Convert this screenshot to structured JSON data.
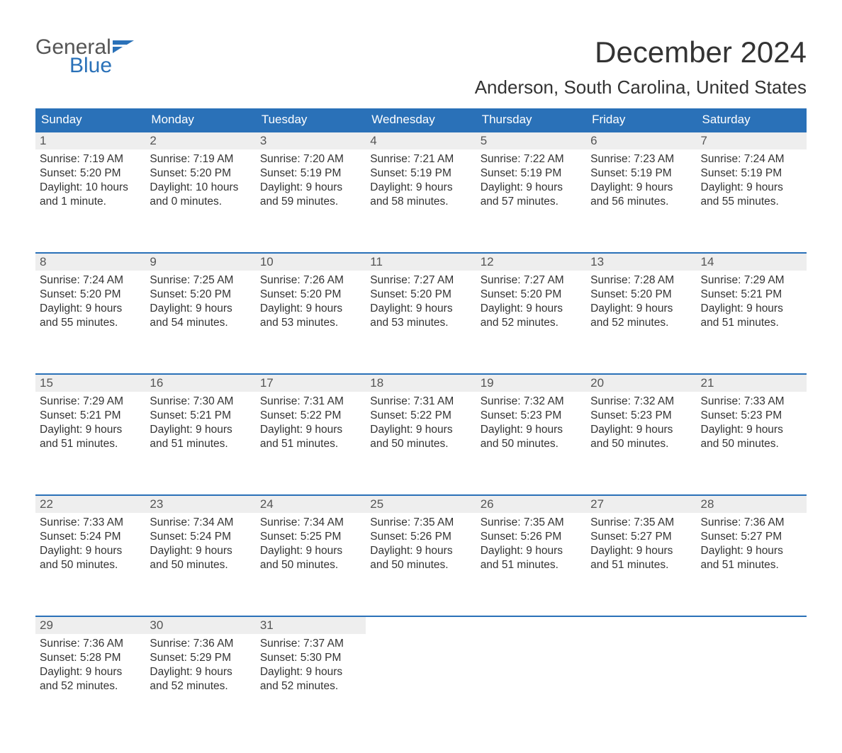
{
  "colors": {
    "header_bg": "#2a71b8",
    "header_text": "#ffffff",
    "daynum_bg": "#eeeeee",
    "row_border": "#2a71b8",
    "text": "#333333",
    "logo_gray": "#555555",
    "logo_blue": "#2a71b8",
    "page_bg": "#ffffff"
  },
  "logo": {
    "word1": "General",
    "word2": "Blue"
  },
  "title": "December 2024",
  "location": "Anderson, South Carolina, United States",
  "day_headers": [
    "Sunday",
    "Monday",
    "Tuesday",
    "Wednesday",
    "Thursday",
    "Friday",
    "Saturday"
  ],
  "weeks": [
    [
      {
        "n": "1",
        "sr": "Sunrise: 7:19 AM",
        "ss": "Sunset: 5:20 PM",
        "d1": "Daylight: 10 hours",
        "d2": "and 1 minute."
      },
      {
        "n": "2",
        "sr": "Sunrise: 7:19 AM",
        "ss": "Sunset: 5:20 PM",
        "d1": "Daylight: 10 hours",
        "d2": "and 0 minutes."
      },
      {
        "n": "3",
        "sr": "Sunrise: 7:20 AM",
        "ss": "Sunset: 5:19 PM",
        "d1": "Daylight: 9 hours",
        "d2": "and 59 minutes."
      },
      {
        "n": "4",
        "sr": "Sunrise: 7:21 AM",
        "ss": "Sunset: 5:19 PM",
        "d1": "Daylight: 9 hours",
        "d2": "and 58 minutes."
      },
      {
        "n": "5",
        "sr": "Sunrise: 7:22 AM",
        "ss": "Sunset: 5:19 PM",
        "d1": "Daylight: 9 hours",
        "d2": "and 57 minutes."
      },
      {
        "n": "6",
        "sr": "Sunrise: 7:23 AM",
        "ss": "Sunset: 5:19 PM",
        "d1": "Daylight: 9 hours",
        "d2": "and 56 minutes."
      },
      {
        "n": "7",
        "sr": "Sunrise: 7:24 AM",
        "ss": "Sunset: 5:19 PM",
        "d1": "Daylight: 9 hours",
        "d2": "and 55 minutes."
      }
    ],
    [
      {
        "n": "8",
        "sr": "Sunrise: 7:24 AM",
        "ss": "Sunset: 5:20 PM",
        "d1": "Daylight: 9 hours",
        "d2": "and 55 minutes."
      },
      {
        "n": "9",
        "sr": "Sunrise: 7:25 AM",
        "ss": "Sunset: 5:20 PM",
        "d1": "Daylight: 9 hours",
        "d2": "and 54 minutes."
      },
      {
        "n": "10",
        "sr": "Sunrise: 7:26 AM",
        "ss": "Sunset: 5:20 PM",
        "d1": "Daylight: 9 hours",
        "d2": "and 53 minutes."
      },
      {
        "n": "11",
        "sr": "Sunrise: 7:27 AM",
        "ss": "Sunset: 5:20 PM",
        "d1": "Daylight: 9 hours",
        "d2": "and 53 minutes."
      },
      {
        "n": "12",
        "sr": "Sunrise: 7:27 AM",
        "ss": "Sunset: 5:20 PM",
        "d1": "Daylight: 9 hours",
        "d2": "and 52 minutes."
      },
      {
        "n": "13",
        "sr": "Sunrise: 7:28 AM",
        "ss": "Sunset: 5:20 PM",
        "d1": "Daylight: 9 hours",
        "d2": "and 52 minutes."
      },
      {
        "n": "14",
        "sr": "Sunrise: 7:29 AM",
        "ss": "Sunset: 5:21 PM",
        "d1": "Daylight: 9 hours",
        "d2": "and 51 minutes."
      }
    ],
    [
      {
        "n": "15",
        "sr": "Sunrise: 7:29 AM",
        "ss": "Sunset: 5:21 PM",
        "d1": "Daylight: 9 hours",
        "d2": "and 51 minutes."
      },
      {
        "n": "16",
        "sr": "Sunrise: 7:30 AM",
        "ss": "Sunset: 5:21 PM",
        "d1": "Daylight: 9 hours",
        "d2": "and 51 minutes."
      },
      {
        "n": "17",
        "sr": "Sunrise: 7:31 AM",
        "ss": "Sunset: 5:22 PM",
        "d1": "Daylight: 9 hours",
        "d2": "and 51 minutes."
      },
      {
        "n": "18",
        "sr": "Sunrise: 7:31 AM",
        "ss": "Sunset: 5:22 PM",
        "d1": "Daylight: 9 hours",
        "d2": "and 50 minutes."
      },
      {
        "n": "19",
        "sr": "Sunrise: 7:32 AM",
        "ss": "Sunset: 5:23 PM",
        "d1": "Daylight: 9 hours",
        "d2": "and 50 minutes."
      },
      {
        "n": "20",
        "sr": "Sunrise: 7:32 AM",
        "ss": "Sunset: 5:23 PM",
        "d1": "Daylight: 9 hours",
        "d2": "and 50 minutes."
      },
      {
        "n": "21",
        "sr": "Sunrise: 7:33 AM",
        "ss": "Sunset: 5:23 PM",
        "d1": "Daylight: 9 hours",
        "d2": "and 50 minutes."
      }
    ],
    [
      {
        "n": "22",
        "sr": "Sunrise: 7:33 AM",
        "ss": "Sunset: 5:24 PM",
        "d1": "Daylight: 9 hours",
        "d2": "and 50 minutes."
      },
      {
        "n": "23",
        "sr": "Sunrise: 7:34 AM",
        "ss": "Sunset: 5:24 PM",
        "d1": "Daylight: 9 hours",
        "d2": "and 50 minutes."
      },
      {
        "n": "24",
        "sr": "Sunrise: 7:34 AM",
        "ss": "Sunset: 5:25 PM",
        "d1": "Daylight: 9 hours",
        "d2": "and 50 minutes."
      },
      {
        "n": "25",
        "sr": "Sunrise: 7:35 AM",
        "ss": "Sunset: 5:26 PM",
        "d1": "Daylight: 9 hours",
        "d2": "and 50 minutes."
      },
      {
        "n": "26",
        "sr": "Sunrise: 7:35 AM",
        "ss": "Sunset: 5:26 PM",
        "d1": "Daylight: 9 hours",
        "d2": "and 51 minutes."
      },
      {
        "n": "27",
        "sr": "Sunrise: 7:35 AM",
        "ss": "Sunset: 5:27 PM",
        "d1": "Daylight: 9 hours",
        "d2": "and 51 minutes."
      },
      {
        "n": "28",
        "sr": "Sunrise: 7:36 AM",
        "ss": "Sunset: 5:27 PM",
        "d1": "Daylight: 9 hours",
        "d2": "and 51 minutes."
      }
    ],
    [
      {
        "n": "29",
        "sr": "Sunrise: 7:36 AM",
        "ss": "Sunset: 5:28 PM",
        "d1": "Daylight: 9 hours",
        "d2": "and 52 minutes."
      },
      {
        "n": "30",
        "sr": "Sunrise: 7:36 AM",
        "ss": "Sunset: 5:29 PM",
        "d1": "Daylight: 9 hours",
        "d2": "and 52 minutes."
      },
      {
        "n": "31",
        "sr": "Sunrise: 7:37 AM",
        "ss": "Sunset: 5:30 PM",
        "d1": "Daylight: 9 hours",
        "d2": "and 52 minutes."
      },
      null,
      null,
      null,
      null
    ]
  ]
}
